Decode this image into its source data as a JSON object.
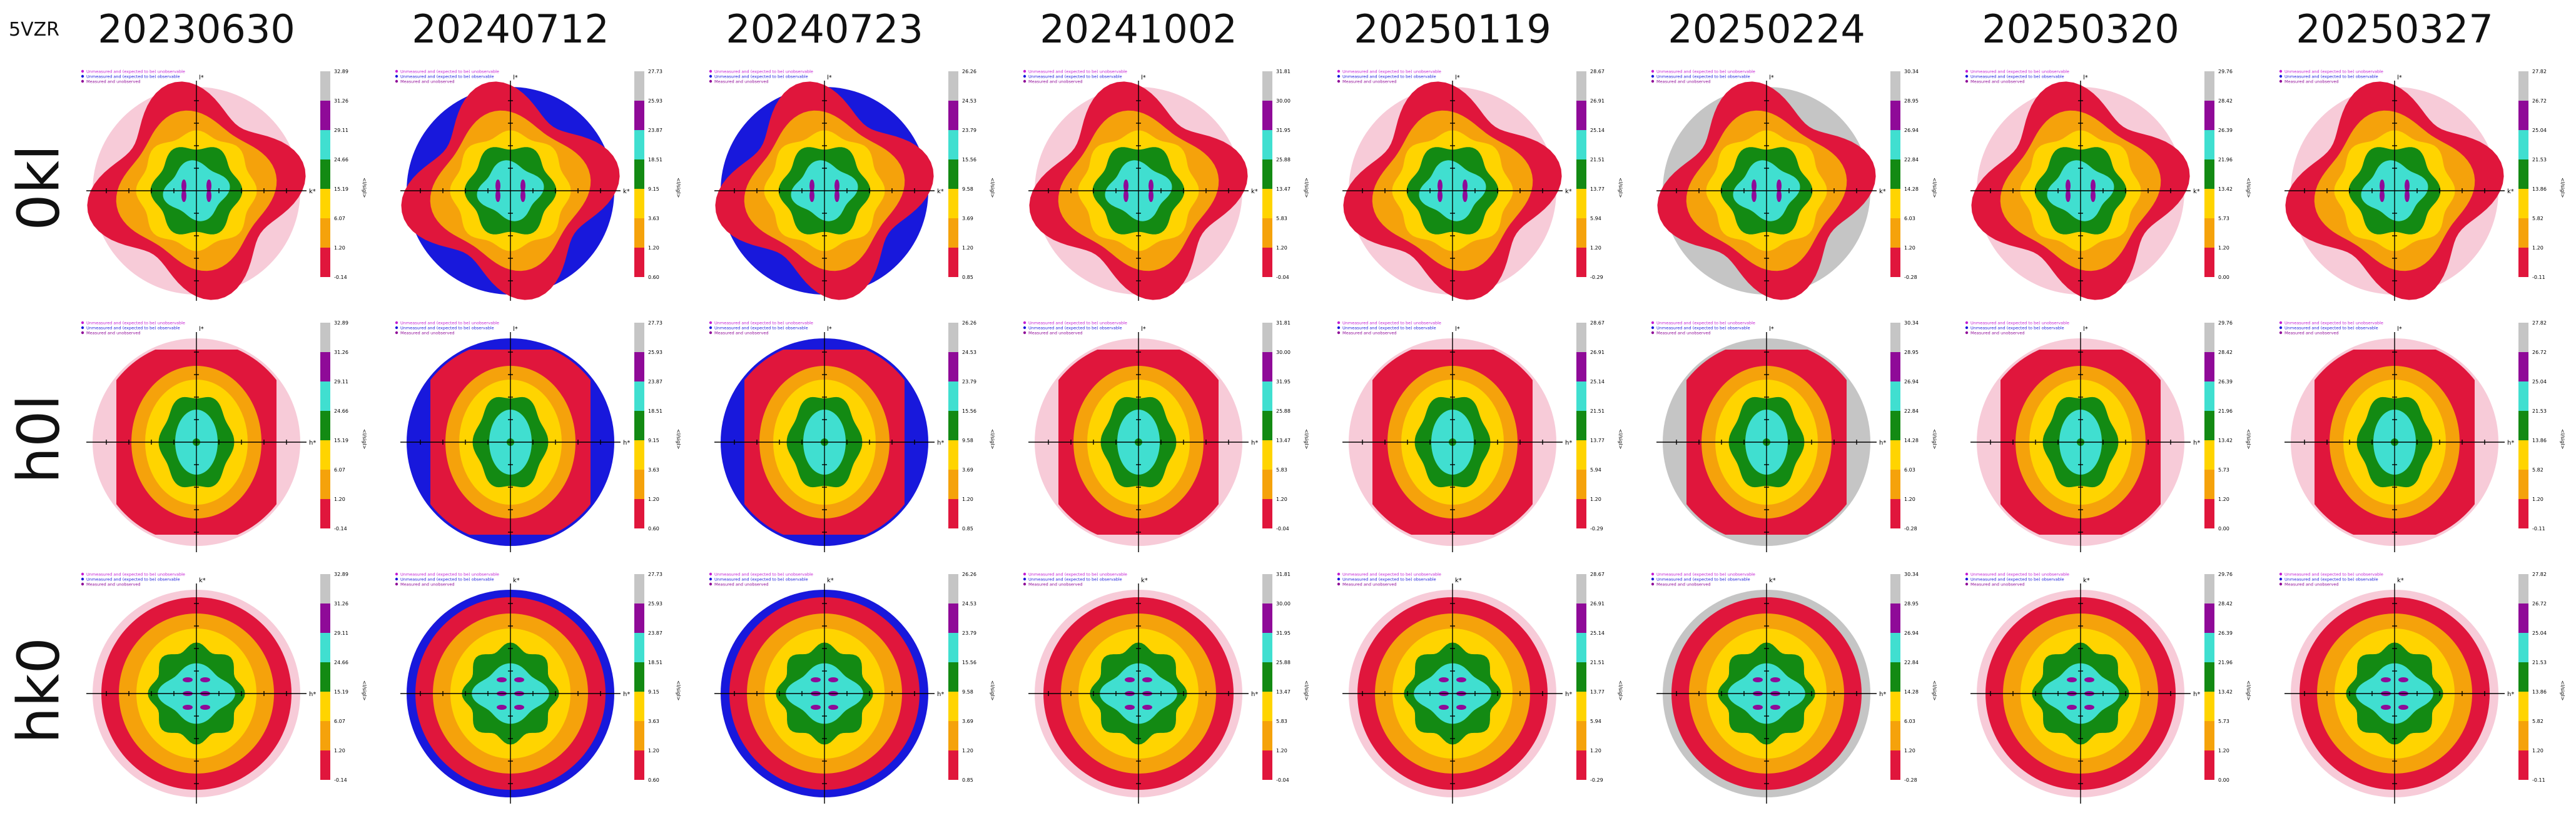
{
  "title": "5VZR",
  "datasets": [
    "20230630",
    "20240712",
    "20240723",
    "20241002",
    "20250119",
    "20250224",
    "20250320",
    "20250327"
  ],
  "zones": [
    "0kl",
    "h0l",
    "hk0"
  ],
  "colors": {
    "red": "#e0163c",
    "orange": "#f5a20b",
    "gold": "#ffd400",
    "green": "#138a13",
    "turquoise": "#40dfd0",
    "purple": "#8f0a98",
    "gray": "#c5c5c5",
    "blue": "#1818dc",
    "pink": "#f7cbd8"
  },
  "legend": {
    "entries": [
      "Unmeasured and (expected to be) unobservable",
      "Unmeasured and (expected to be) observable",
      "Measured and unobserved"
    ],
    "entry_colors": [
      "#c41fd3",
      "#1818dc",
      "#8f0a98"
    ]
  },
  "colorbar_label": "<I/sigI>",
  "colorbar_ticks": [
    [
      "32.89",
      "31.26",
      "29.11",
      "24.66",
      "15.19",
      "6.07",
      "1.20",
      "-0.14"
    ],
    [
      "27.73",
      "25.93",
      "23.87",
      "18.51",
      "9.15",
      "3.63",
      "1.20",
      "0.60"
    ],
    [
      "26.26",
      "24.53",
      "23.79",
      "15.56",
      "9.58",
      "3.69",
      "1.20",
      "0.85"
    ],
    [
      "31.81",
      "30.00",
      "31.95",
      "25.88",
      "13.47",
      "5.83",
      "1.20",
      "-0.04"
    ],
    [
      "28.67",
      "26.91",
      "25.14",
      "21.51",
      "13.77",
      "5.94",
      "1.20",
      "-0.29"
    ],
    [
      "30.34",
      "28.95",
      "26.94",
      "22.84",
      "14.28",
      "6.03",
      "1.20",
      "-0.28"
    ],
    [
      "29.76",
      "28.42",
      "26.39",
      "21.96",
      "13.42",
      "5.73",
      "1.20",
      "0.00"
    ],
    [
      "27.82",
      "26.72",
      "25.04",
      "21.53",
      "13.86",
      "5.82",
      "1.20",
      "-0.11"
    ]
  ],
  "axis_labels": {
    "0kl": [
      "k*",
      "l*"
    ],
    "h0l": [
      "h*",
      "l*"
    ],
    "hk0": [
      "h*",
      "k*"
    ]
  },
  "outer_ring": {
    "20230630": "pink",
    "20240712": "blue",
    "20240723": "blue",
    "20241002": "pink",
    "20250119": "pink",
    "20250224": "gray",
    "20250320": "pink",
    "20250327": "pink"
  }
}
